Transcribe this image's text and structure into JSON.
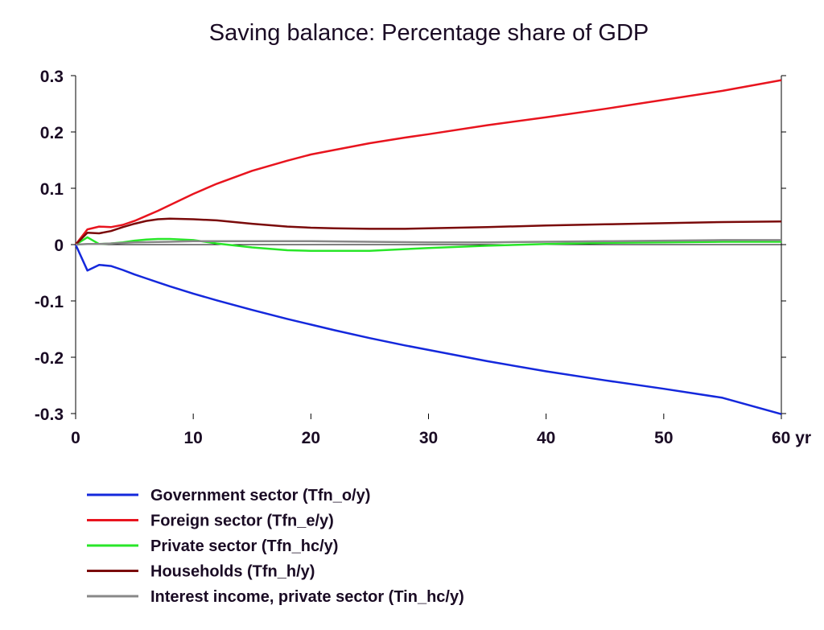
{
  "chart_data": {
    "type": "line",
    "title": "Saving balance: Percentage share of GDP",
    "xlabel": "",
    "ylabel": "",
    "xlim": [
      0,
      60
    ],
    "ylim": [
      -0.3,
      0.3
    ],
    "x_ticks": [
      0,
      10,
      20,
      30,
      40,
      50,
      60
    ],
    "x_tick_labels": [
      "0",
      "10",
      "20",
      "30",
      "40",
      "50",
      "60 yr"
    ],
    "y_ticks": [
      0.3,
      0.2,
      0.1,
      0,
      -0.1,
      -0.2,
      -0.3
    ],
    "y_tick_labels": [
      "0.3",
      "0.2",
      "0.1",
      "0",
      "-0.1",
      "-0.2",
      "-0.3"
    ],
    "grid": false,
    "legend_position": "bottom-left",
    "zero_line": true,
    "series": [
      {
        "name": "Government sector (Tfn_o/y)",
        "color": "#1428dc",
        "x": [
          0,
          1,
          2,
          3,
          4,
          5,
          6,
          7,
          8,
          10,
          12,
          15,
          18,
          20,
          22,
          25,
          28,
          30,
          35,
          40,
          45,
          50,
          55,
          60
        ],
        "y": [
          0,
          -0.046,
          -0.036,
          -0.038,
          -0.045,
          -0.053,
          -0.06,
          -0.067,
          -0.074,
          -0.087,
          -0.099,
          -0.116,
          -0.132,
          -0.142,
          -0.152,
          -0.166,
          -0.179,
          -0.187,
          -0.207,
          -0.225,
          -0.241,
          -0.256,
          -0.272,
          -0.301
        ]
      },
      {
        "name": "Foreign sector (Tfn_e/y)",
        "color": "#e8141e",
        "x": [
          0,
          1,
          2,
          3,
          4,
          5,
          6,
          7,
          8,
          10,
          12,
          15,
          18,
          20,
          22,
          25,
          28,
          30,
          35,
          40,
          45,
          50,
          55,
          60
        ],
        "y": [
          0,
          0.027,
          0.032,
          0.031,
          0.035,
          0.042,
          0.051,
          0.06,
          0.07,
          0.09,
          0.108,
          0.131,
          0.149,
          0.16,
          0.168,
          0.18,
          0.19,
          0.196,
          0.212,
          0.226,
          0.241,
          0.257,
          0.273,
          0.292
        ]
      },
      {
        "name": "Private sector (Tfn_hc/y)",
        "color": "#28e628",
        "x": [
          0,
          1,
          2,
          3,
          4,
          5,
          6,
          7,
          8,
          10,
          12,
          15,
          18,
          20,
          22,
          25,
          28,
          30,
          35,
          40,
          45,
          50,
          55,
          60
        ],
        "y": [
          0,
          0.013,
          0.001,
          0.002,
          0.004,
          0.007,
          0.009,
          0.01,
          0.01,
          0.008,
          0.002,
          -0.005,
          -0.01,
          -0.011,
          -0.011,
          -0.011,
          -0.008,
          -0.006,
          -0.002,
          0.001,
          0.003,
          0.004,
          0.005,
          0.005
        ]
      },
      {
        "name": "Households (Tfn_h/y)",
        "color": "#7a0a0a",
        "x": [
          0,
          1,
          2,
          3,
          4,
          5,
          6,
          7,
          8,
          10,
          12,
          15,
          18,
          20,
          22,
          25,
          28,
          30,
          35,
          40,
          45,
          50,
          55,
          60
        ],
        "y": [
          0,
          0.021,
          0.02,
          0.024,
          0.031,
          0.037,
          0.042,
          0.045,
          0.046,
          0.045,
          0.043,
          0.037,
          0.032,
          0.03,
          0.029,
          0.028,
          0.028,
          0.029,
          0.031,
          0.034,
          0.036,
          0.038,
          0.04,
          0.041
        ]
      },
      {
        "name": "Interest income, private sector (Tin_hc/y)",
        "color": "#888888",
        "x": [
          0,
          1,
          2,
          3,
          5,
          8,
          10,
          15,
          20,
          25,
          30,
          35,
          40,
          45,
          50,
          55,
          60
        ],
        "y": [
          0,
          0.001,
          0.001,
          0.002,
          0.004,
          0.005,
          0.006,
          0.006,
          0.006,
          0.005,
          0.004,
          0.004,
          0.005,
          0.006,
          0.007,
          0.008,
          0.008
        ]
      }
    ]
  }
}
